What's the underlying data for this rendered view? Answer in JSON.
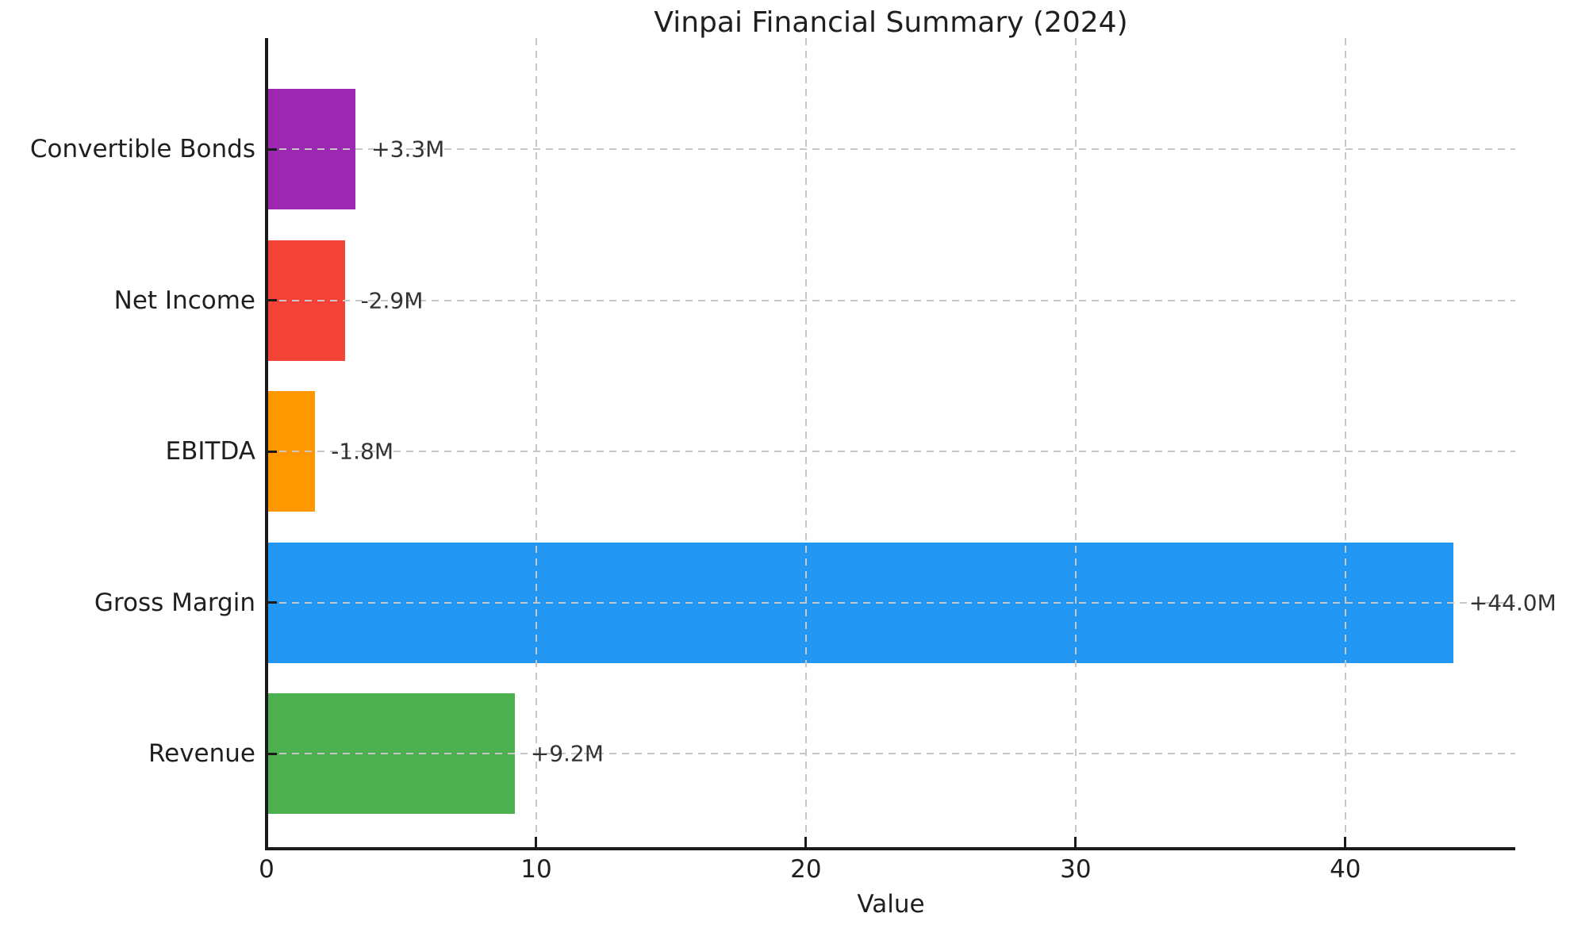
{
  "chart_data": {
    "type": "bar",
    "orientation": "horizontal",
    "title": "Vinpai Financial Summary (2024)",
    "xlabel": "Value",
    "categories": [
      "Convertible Bonds",
      "Net Income",
      "EBITDA",
      "Gross Margin",
      "Revenue"
    ],
    "values": [
      3.3,
      -2.9,
      -1.8,
      44.0,
      9.2
    ],
    "value_labels": [
      "+3.3M",
      "-2.9M",
      "-1.8M",
      "+44.0M",
      "+9.2M"
    ],
    "bar_colors": [
      "#9c27b0",
      "#f44336",
      "#ff9800",
      "#2196f3",
      "#4caf50"
    ],
    "x_tick_labels": [
      "0",
      "10",
      "20",
      "30",
      "40"
    ],
    "x_tick_values": [
      0,
      10,
      20,
      30,
      40
    ],
    "xlim": [
      0,
      46.3
    ],
    "bars_drawn_as_absolute_value": true,
    "grid": {
      "style": "dashed",
      "color": "#c7c7c7",
      "axes": "both",
      "drawn_over_bars": true
    },
    "legend": "none",
    "colors": {
      "text": "#1f1f1f",
      "annotation": "#333333",
      "axis": "#1a1a1a",
      "background": "#ffffff"
    }
  }
}
